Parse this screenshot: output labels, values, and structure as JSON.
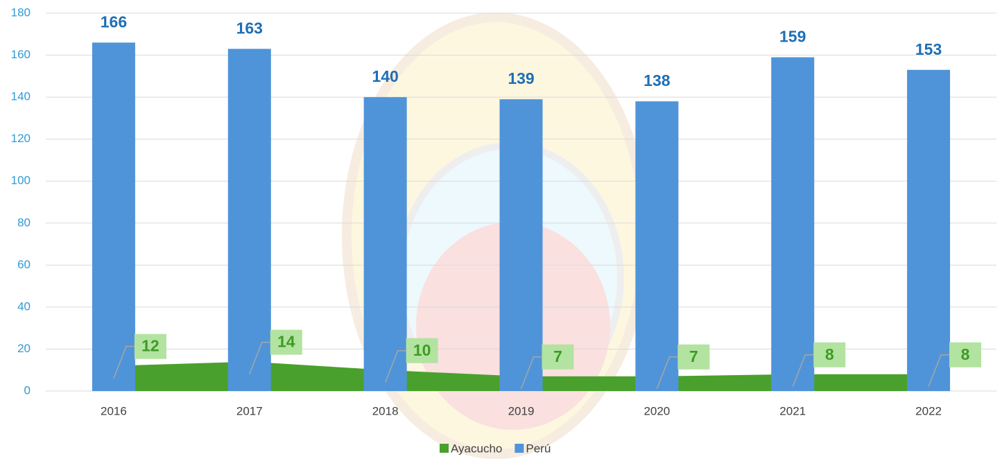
{
  "chart_data": {
    "type": "bar",
    "categories": [
      "2016",
      "2017",
      "2018",
      "2019",
      "2020",
      "2021",
      "2022"
    ],
    "series": [
      {
        "name": "Ayacucho",
        "type": "area",
        "color": "#4aa02c",
        "values": [
          12,
          14,
          10,
          7,
          7,
          8,
          8
        ]
      },
      {
        "name": "Perú",
        "type": "bar",
        "color": "#4f94d9",
        "values": [
          166,
          163,
          140,
          139,
          138,
          159,
          153
        ]
      }
    ],
    "ylim": [
      0,
      180
    ],
    "yticks": [
      0,
      20,
      40,
      60,
      80,
      100,
      120,
      140,
      160,
      180
    ],
    "grid": true,
    "legend": "bottom"
  }
}
